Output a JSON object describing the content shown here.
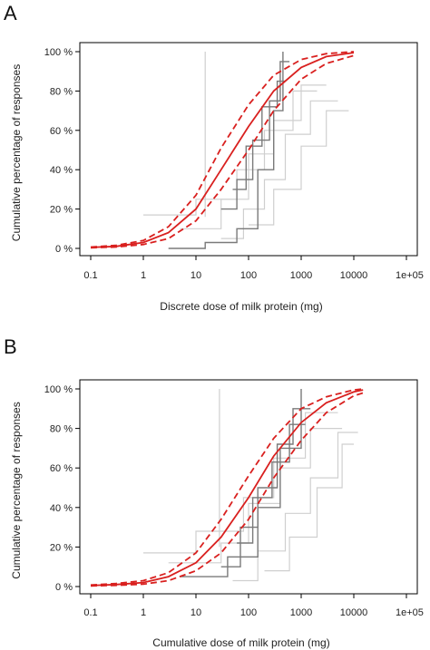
{
  "chart_data": [
    {
      "panel": "A",
      "type": "line",
      "xlabel": "Discrete dose of milk protein (mg)",
      "ylabel": "Cumulative percentage of responses",
      "x_scale": "log",
      "x_ticks": [
        "0.1",
        "1",
        "10",
        "100",
        "1000",
        "10000",
        "1e+05"
      ],
      "y_ticks": [
        "0 %",
        "20 %",
        "40 %",
        "60 %",
        "80 %",
        "100 %"
      ],
      "xlim": [
        0.1,
        100000
      ],
      "ylim": [
        0,
        100
      ],
      "grid": false,
      "colors": {
        "fit": "#d9201f",
        "ci": "#d9201f",
        "study_dark": "#7a7a7a",
        "study_light": "#cfcfcf"
      },
      "fitted_curve": {
        "x": [
          0.1,
          0.3,
          1,
          3,
          10,
          30,
          100,
          300,
          1000,
          3000,
          10000
        ],
        "y": [
          0.5,
          1,
          3,
          8,
          20,
          40,
          62,
          80,
          92,
          97.5,
          99.5
        ]
      },
      "ci_upper": {
        "x": [
          0.1,
          0.3,
          1,
          3,
          10,
          30,
          100,
          300,
          1000,
          3000,
          10000
        ],
        "y": [
          0.7,
          1.5,
          4,
          11,
          27,
          51,
          73,
          88,
          96,
          99,
          100
        ]
      },
      "ci_lower": {
        "x": [
          0.1,
          0.3,
          1,
          3,
          10,
          30,
          100,
          300,
          1000,
          3000,
          10000
        ],
        "y": [
          0.3,
          0.7,
          2,
          5,
          14,
          30,
          50,
          70,
          86,
          94,
          98
        ]
      },
      "dark_steps": [
        {
          "x": [
            3,
            15,
            15,
            60,
            60,
            150,
            150,
            300,
            300,
            450,
            450
          ],
          "y": [
            0,
            0,
            3,
            3,
            10,
            10,
            40,
            40,
            70,
            70,
            100
          ]
        },
        {
          "x": [
            30,
            60,
            60,
            120,
            120,
            250,
            250,
            400,
            400,
            600
          ],
          "y": [
            20,
            20,
            35,
            35,
            55,
            55,
            75,
            75,
            95,
            95
          ]
        },
        {
          "x": [
            50,
            90,
            90,
            180,
            180,
            350,
            350,
            500
          ],
          "y": [
            30,
            30,
            52,
            52,
            72,
            72,
            85,
            85
          ]
        }
      ],
      "light_steps": [
        {
          "x": [
            1,
            10,
            10,
            60,
            60,
            200,
            200,
            700,
            700,
            2000
          ],
          "y": [
            17,
            17,
            25,
            25,
            40,
            40,
            60,
            60,
            80,
            80
          ]
        },
        {
          "x": [
            15,
            15
          ],
          "y": [
            16,
            100
          ]
        },
        {
          "x": [
            5,
            30,
            30,
            100,
            100,
            300,
            300,
            1000,
            1000,
            3000
          ],
          "y": [
            10,
            10,
            25,
            25,
            48,
            48,
            65,
            65,
            83,
            83
          ]
        },
        {
          "x": [
            30,
            80,
            80,
            200,
            200,
            500,
            500,
            1500,
            1500,
            5000
          ],
          "y": [
            5,
            5,
            20,
            20,
            35,
            35,
            58,
            58,
            75,
            75
          ]
        },
        {
          "x": [
            100,
            300,
            300,
            1000,
            1000,
            3000,
            3000,
            8000
          ],
          "y": [
            12,
            12,
            30,
            30,
            52,
            52,
            70,
            70
          ]
        }
      ]
    },
    {
      "panel": "B",
      "type": "line",
      "xlabel": "Cumulative dose of milk protein (mg)",
      "ylabel": "Cumulative percentage of responses",
      "x_scale": "log",
      "x_ticks": [
        "0.1",
        "1",
        "10",
        "100",
        "1000",
        "10000",
        "1e+05"
      ],
      "y_ticks": [
        "0 %",
        "20 %",
        "40 %",
        "60 %",
        "80 %",
        "100 %"
      ],
      "xlim": [
        0.1,
        100000
      ],
      "ylim": [
        0,
        100
      ],
      "grid": false,
      "colors": {
        "fit": "#d9201f",
        "ci": "#d9201f",
        "study_dark": "#7a7a7a",
        "study_light": "#cfcfcf"
      },
      "fitted_curve": {
        "x": [
          0.1,
          0.3,
          1,
          3,
          10,
          30,
          100,
          300,
          1000,
          3000,
          10000,
          15000
        ],
        "y": [
          0.5,
          1,
          2,
          5,
          12,
          25,
          45,
          66,
          83,
          93,
          98.5,
          99.5
        ]
      },
      "ci_upper": {
        "x": [
          0.1,
          0.3,
          1,
          3,
          10,
          30,
          100,
          300,
          1000,
          3000,
          10000,
          15000
        ],
        "y": [
          0.8,
          1.5,
          3,
          7,
          17,
          34,
          56,
          75,
          90,
          96,
          99.5,
          100
        ]
      },
      "ci_lower": {
        "x": [
          0.1,
          0.3,
          1,
          3,
          10,
          30,
          100,
          300,
          1000,
          3000,
          10000,
          15000
        ],
        "y": [
          0.3,
          0.6,
          1.2,
          3,
          8,
          17,
          34,
          55,
          74,
          88,
          96.5,
          98
        ]
      },
      "dark_steps": [
        {
          "x": [
            5,
            40,
            40,
            150,
            150,
            400,
            400,
            1000,
            1000
          ],
          "y": [
            5,
            5,
            15,
            15,
            40,
            40,
            70,
            70,
            100
          ]
        },
        {
          "x": [
            30,
            70,
            70,
            150,
            150,
            350,
            350,
            700,
            700,
            1500
          ],
          "y": [
            10,
            10,
            30,
            30,
            50,
            50,
            72,
            72,
            90,
            90
          ]
        },
        {
          "x": [
            60,
            120,
            120,
            280,
            280,
            600,
            600,
            1200
          ],
          "y": [
            22,
            22,
            45,
            45,
            63,
            63,
            82,
            82
          ]
        }
      ],
      "light_steps": [
        {
          "x": [
            1,
            10,
            10,
            80,
            80,
            300,
            300,
            1200,
            1200,
            5000
          ],
          "y": [
            17,
            17,
            28,
            28,
            45,
            45,
            65,
            65,
            88,
            88
          ]
        },
        {
          "x": [
            28,
            28
          ],
          "y": [
            20,
            100
          ]
        },
        {
          "x": [
            3,
            30,
            30,
            100,
            100,
            400,
            400,
            1500,
            1500,
            6000
          ],
          "y": [
            12,
            12,
            22,
            22,
            42,
            42,
            60,
            60,
            80,
            80
          ]
        },
        {
          "x": [
            50,
            150,
            150,
            500,
            500,
            1500,
            1500,
            5000,
            5000,
            12000
          ],
          "y": [
            3,
            3,
            18,
            18,
            37,
            37,
            55,
            55,
            78,
            78
          ]
        },
        {
          "x": [
            200,
            600,
            600,
            2000,
            2000,
            6000,
            6000,
            10000
          ],
          "y": [
            8,
            8,
            25,
            25,
            50,
            50,
            72,
            72
          ]
        }
      ]
    }
  ]
}
